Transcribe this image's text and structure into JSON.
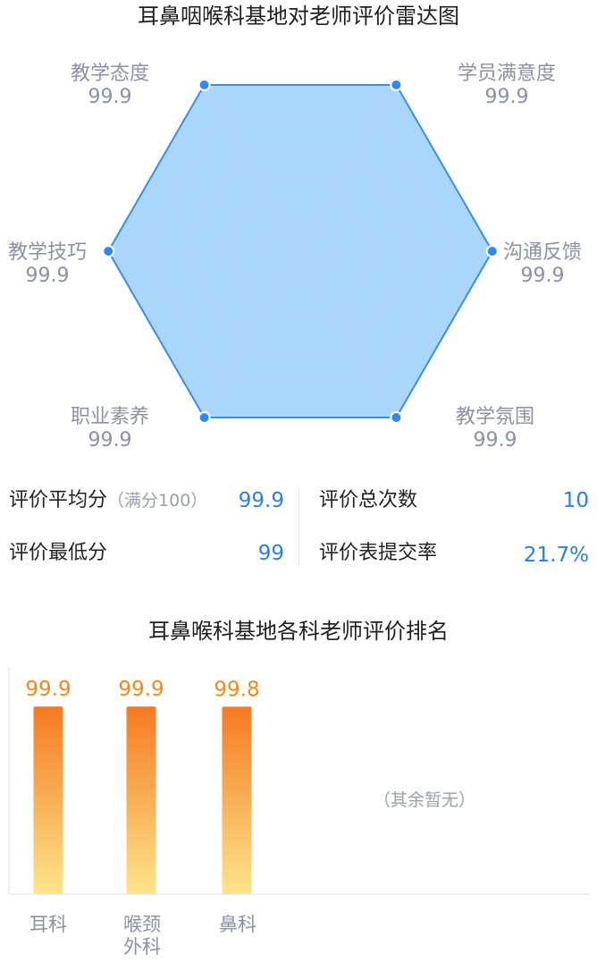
{
  "radar": {
    "title": "耳鼻咽喉科基地对老师评价雷达图",
    "colors": {
      "fill": "#98cdfa",
      "stroke": "#3a8ee6",
      "point": "#2f8af0",
      "grid": "#bcdcf7"
    },
    "max": 100
  },
  "stats": {
    "avg_label": "评价平均分",
    "avg_note": "（满分100）",
    "avg_value": "99.9",
    "total_label": "评价总次数",
    "total_value": "10",
    "min_label": "评价最低分",
    "min_value": "99",
    "rate_label": "评价表提交率",
    "rate_value": "21.7%"
  },
  "ranking": {
    "title": "耳鼻喉科基地各科老师评价排名",
    "empty_note": "（其余暂无）",
    "colors": {
      "bar_top": "#f57a22",
      "bar_bottom": "#fde58a",
      "value": "#ef8a1d"
    }
  },
  "chart_data": [
    {
      "type": "radar",
      "title": "耳鼻咽喉科基地对老师评价雷达图",
      "max": 100,
      "axes": [
        "教学态度",
        "学员满意度",
        "沟通反馈",
        "教学氛围",
        "职业素养",
        "教学技巧"
      ],
      "values": [
        99.9,
        99.9,
        99.9,
        99.9,
        99.9,
        99.9
      ],
      "value_labels": [
        "99.9",
        "99.9",
        "99.9",
        "99.9",
        "99.9",
        "99.9"
      ]
    },
    {
      "type": "bar",
      "title": "耳鼻喉科基地各科老师评价排名",
      "categories": [
        "耳科",
        "喉颈\n外科",
        "鼻科"
      ],
      "values": [
        99.9,
        99.9,
        99.8
      ],
      "value_labels": [
        "99.9",
        "99.9",
        "99.8"
      ],
      "ylim": [
        0,
        100
      ]
    }
  ]
}
